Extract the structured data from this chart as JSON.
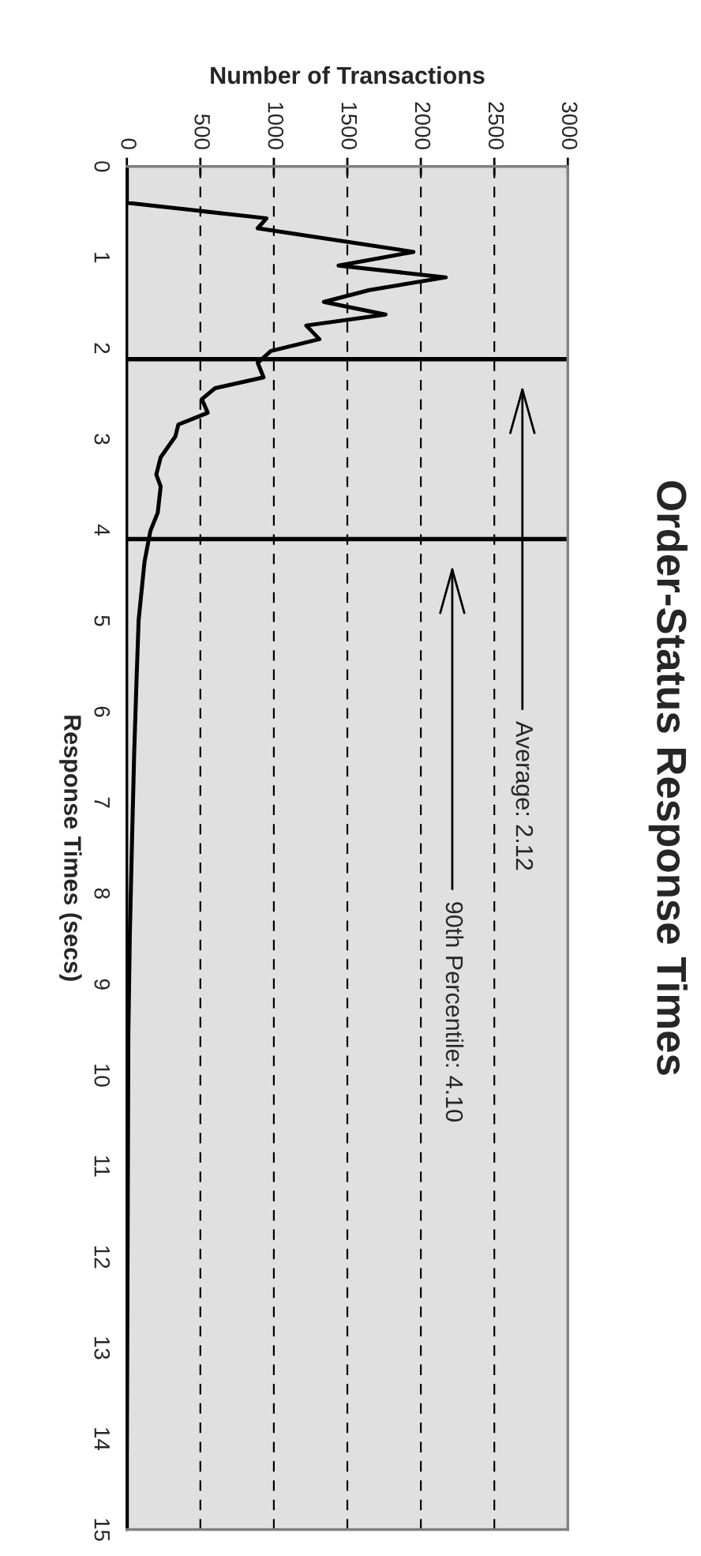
{
  "chart_data": {
    "type": "line",
    "title": "Order-Status Response Times",
    "xlabel": "Number of Transactions",
    "ylabel": "Response Times (secs)",
    "series": [
      {
        "color": "#000000",
        "x": [
          0,
          0,
          950,
          890,
          1950,
          1440,
          2170,
          1650,
          1340,
          1760,
          1220,
          1310,
          980,
          890,
          930,
          600,
          510,
          550,
          350,
          330,
          230,
          200,
          230,
          210,
          160,
          120,
          80,
          65,
          50,
          35,
          20,
          10,
          5,
          0,
          0
        ],
        "values": [
          0,
          0.4,
          0.57,
          0.68,
          0.94,
          1.09,
          1.22,
          1.36,
          1.49,
          1.63,
          1.75,
          1.9,
          2.03,
          2.16,
          2.32,
          2.44,
          2.56,
          2.71,
          2.84,
          2.97,
          3.2,
          3.39,
          3.52,
          3.81,
          4.01,
          4.35,
          4.99,
          5.69,
          6.44,
          7.42,
          8.46,
          9.56,
          11.88,
          14.2,
          15
        ]
      }
    ],
    "xlim": [
      0,
      3000
    ],
    "ylim": [
      15,
      0
    ],
    "xticks": [
      0,
      500,
      1000,
      1500,
      2000,
      2500,
      3000
    ],
    "yticks": [
      0,
      1,
      2,
      3,
      4,
      5,
      6,
      7,
      8,
      9,
      10,
      11,
      12,
      13,
      14,
      15
    ],
    "grid": "x",
    "line_style": "solid",
    "marker": "none",
    "annotations": [
      "Average: 2.12",
      "90th Percentile: 4.10"
    ],
    "ref_lines": [
      {
        "axis": "y",
        "value": 2.12,
        "color": "#000000"
      },
      {
        "axis": "y",
        "value": 4.1,
        "color": "#000000"
      }
    ]
  }
}
